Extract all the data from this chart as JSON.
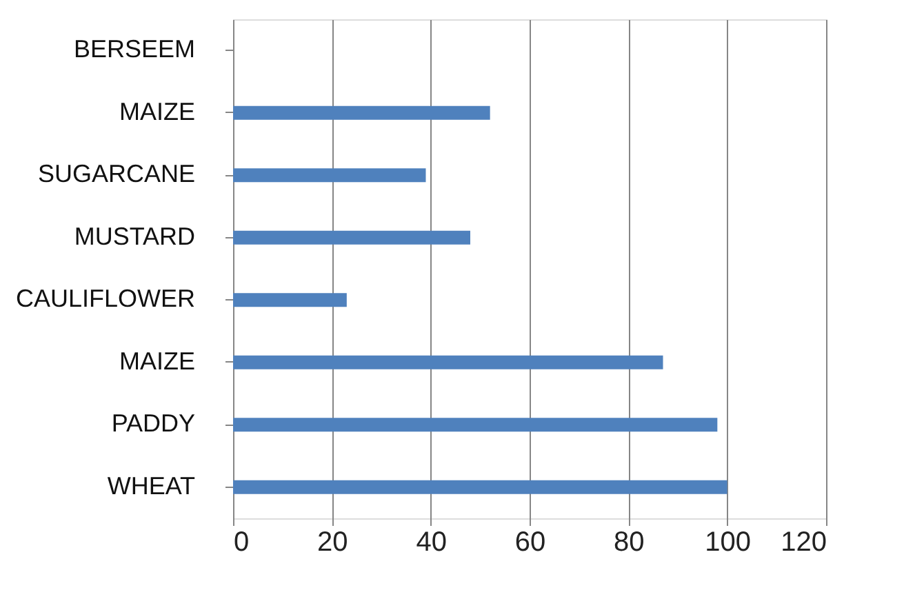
{
  "chart_data": {
    "type": "bar",
    "orientation": "horizontal",
    "categories": [
      "BERSEEM",
      "MAIZE",
      "SUGARCANE",
      "MUSTARD",
      "CAULIFLOWER",
      "MAIZE",
      "PADDY",
      "WHEAT"
    ],
    "values": [
      null,
      52,
      39,
      48,
      23,
      87,
      98,
      100
    ],
    "color": "#4f81bd",
    "xlim": [
      0,
      120
    ],
    "xticks": [
      0,
      20,
      40,
      60,
      80,
      100,
      120
    ],
    "grid": "x"
  }
}
